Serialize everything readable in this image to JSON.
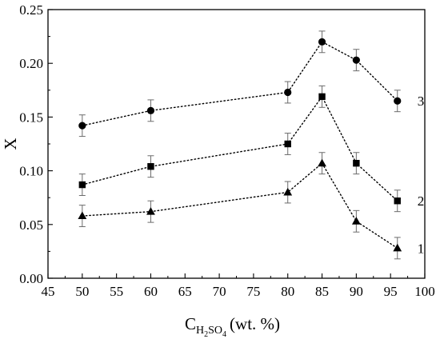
{
  "chart_data": {
    "type": "scatter",
    "title": "",
    "xlabel": {
      "base": "C",
      "sub1": "H",
      "sub2": "2",
      "sub3": "SO",
      "sub4": "4",
      "unit": "(wt. %)"
    },
    "ylabel": "X",
    "xlim": [
      45,
      100
    ],
    "ylim": [
      0.0,
      0.25
    ],
    "xticks": [
      "45",
      "50",
      "55",
      "60",
      "65",
      "70",
      "75",
      "80",
      "85",
      "90",
      "95",
      "100"
    ],
    "yticks": [
      "0.00",
      "0.05",
      "0.10",
      "0.15",
      "0.20",
      "0.25"
    ],
    "grid": false,
    "legend": "none",
    "line_style": "dotted",
    "error_bars": true,
    "x": [
      50,
      60,
      80,
      85,
      90,
      96
    ],
    "series": [
      {
        "name": "1",
        "marker": "triangle",
        "values": [
          0.058,
          0.062,
          0.08,
          0.107,
          0.053,
          0.028
        ],
        "error": [
          0.01,
          0.01,
          0.01,
          0.01,
          0.01,
          0.01
        ]
      },
      {
        "name": "2",
        "marker": "square",
        "values": [
          0.087,
          0.104,
          0.125,
          0.169,
          0.107,
          0.072
        ],
        "error": [
          0.01,
          0.01,
          0.01,
          0.01,
          0.01,
          0.01
        ]
      },
      {
        "name": "3",
        "marker": "circle",
        "values": [
          0.142,
          0.156,
          0.173,
          0.22,
          0.203,
          0.165
        ],
        "error": [
          0.01,
          0.01,
          0.01,
          0.01,
          0.01,
          0.01
        ]
      }
    ]
  }
}
